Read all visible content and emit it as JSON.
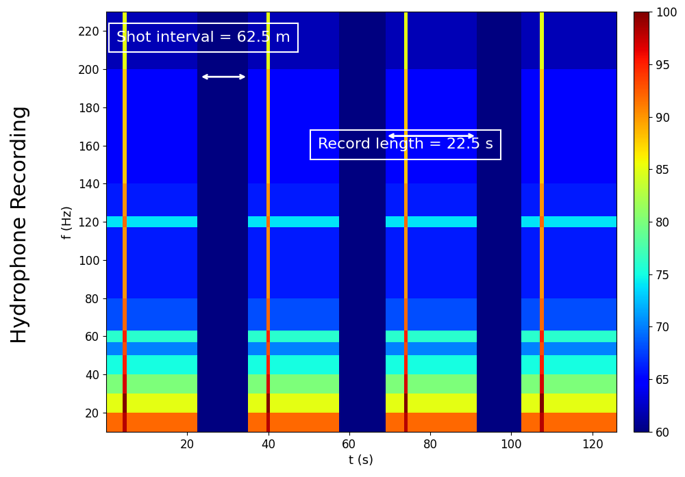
{
  "chart_data": {
    "type": "heatmap",
    "title": "Hydrophone Recording",
    "x_label": "t (s)",
    "y_label": "f (Hz)",
    "x_edges": [
      0,
      4,
      5,
      22.5,
      35,
      39.5,
      40.5,
      57.5,
      69,
      73.5,
      74.5,
      91.5,
      102.5,
      107,
      108,
      126
    ],
    "y_edges": [
      10,
      20,
      30,
      40,
      50,
      57,
      63,
      80,
      117,
      123,
      140,
      200,
      230
    ],
    "cells": [
      [
        92,
        98,
        92,
        60,
        92,
        98,
        92,
        60,
        92,
        98,
        92,
        60,
        92,
        98,
        92
      ],
      [
        85,
        100,
        85,
        60,
        85,
        100,
        85,
        60,
        85,
        100,
        85,
        60,
        85,
        100,
        85
      ],
      [
        80,
        97,
        80,
        60,
        80,
        97,
        80,
        60,
        80,
        97,
        80,
        60,
        80,
        97,
        80
      ],
      [
        75,
        95,
        75,
        60,
        75,
        95,
        75,
        60,
        75,
        95,
        75,
        60,
        75,
        95,
        75
      ],
      [
        70,
        93,
        70,
        60,
        70,
        93,
        70,
        60,
        70,
        93,
        70,
        60,
        70,
        93,
        70
      ],
      [
        76,
        95,
        76,
        60,
        76,
        95,
        76,
        60,
        76,
        95,
        76,
        60,
        76,
        95,
        76
      ],
      [
        68,
        92,
        68,
        60,
        68,
        92,
        68,
        60,
        68,
        92,
        68,
        60,
        68,
        92,
        68
      ],
      [
        66,
        90,
        66,
        60,
        66,
        90,
        66,
        60,
        66,
        90,
        66,
        60,
        66,
        90,
        66
      ],
      [
        74,
        92,
        74,
        60,
        74,
        92,
        74,
        60,
        74,
        92,
        74,
        60,
        74,
        92,
        74
      ],
      [
        66,
        90,
        66,
        60,
        66,
        90,
        66,
        60,
        66,
        90,
        66,
        60,
        66,
        90,
        66
      ],
      [
        65,
        88,
        65,
        60,
        65,
        88,
        65,
        60,
        65,
        88,
        65,
        60,
        65,
        88,
        65
      ],
      [
        62,
        85,
        62,
        60,
        62,
        85,
        62,
        60,
        62,
        85,
        62,
        60,
        62,
        85,
        62
      ]
    ],
    "xlim": [
      0,
      126
    ],
    "ylim": [
      10,
      230
    ],
    "xticks": [
      20,
      40,
      60,
      80,
      100,
      120
    ],
    "yticks": [
      20,
      40,
      60,
      80,
      100,
      120,
      140,
      160,
      180,
      200,
      220
    ],
    "colorbar_range": [
      60,
      100
    ],
    "colorbar_ticks": [
      60,
      65,
      70,
      75,
      80,
      85,
      90,
      95,
      100
    ],
    "annotations": [
      {
        "text": "Shot interval = 62.5 m",
        "x": [
          23,
          35
        ],
        "y": 196
      },
      {
        "text": "Record length = 22.5 s",
        "x": [
          69,
          91.5
        ],
        "y": 165
      }
    ]
  }
}
